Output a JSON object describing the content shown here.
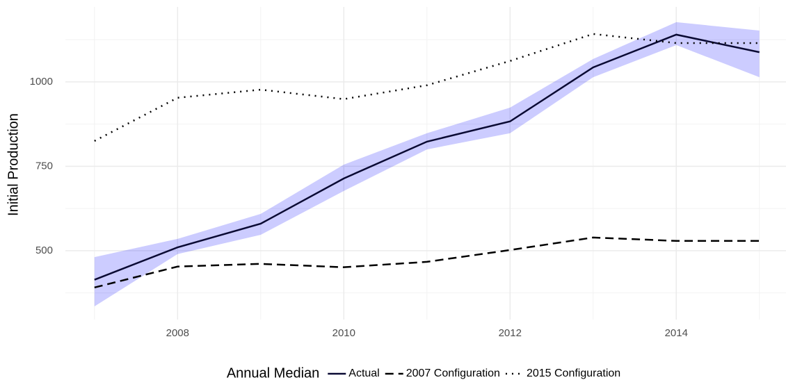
{
  "chart_data": {
    "type": "line",
    "y_label": "Initial Production",
    "legend_title": "Annual Median",
    "legend_position": "bottom",
    "grid": true,
    "x": [
      2007,
      2008,
      2009,
      2010,
      2011,
      2012,
      2013,
      2014,
      2015
    ],
    "xlim": [
      2006.65,
      2015.32
    ],
    "xticks": [
      2008,
      2010,
      2012,
      2014
    ],
    "minor_xticks": [
      2007,
      2009,
      2011,
      2013,
      2015
    ],
    "ylim": [
      296,
      1222
    ],
    "yticks": [
      500,
      750,
      1000
    ],
    "minor_yticks": [
      375,
      625,
      875,
      1125
    ],
    "series": [
      {
        "name": "Actual",
        "color": "#0a0a33",
        "dash": "solid",
        "values": [
          414,
          510,
          580,
          714,
          823,
          883,
          1043,
          1140,
          1088
        ],
        "band_color": "#0000ff",
        "lower": [
          335,
          490,
          547,
          677,
          800,
          848,
          1014,
          1109,
          1014
        ],
        "upper": [
          481,
          535,
          609,
          755,
          848,
          924,
          1068,
          1177,
          1152
        ]
      },
      {
        "name": "2007 Configuration",
        "color": "#000000",
        "dash": "dashed",
        "values": [
          391,
          453,
          461,
          451,
          467,
          502,
          539,
          529,
          529
        ]
      },
      {
        "name": "2015 Configuration",
        "color": "#000000",
        "dash": "dotted",
        "values": [
          825,
          953,
          977,
          949,
          990,
          1062,
          1142,
          1115,
          1115
        ]
      }
    ]
  }
}
